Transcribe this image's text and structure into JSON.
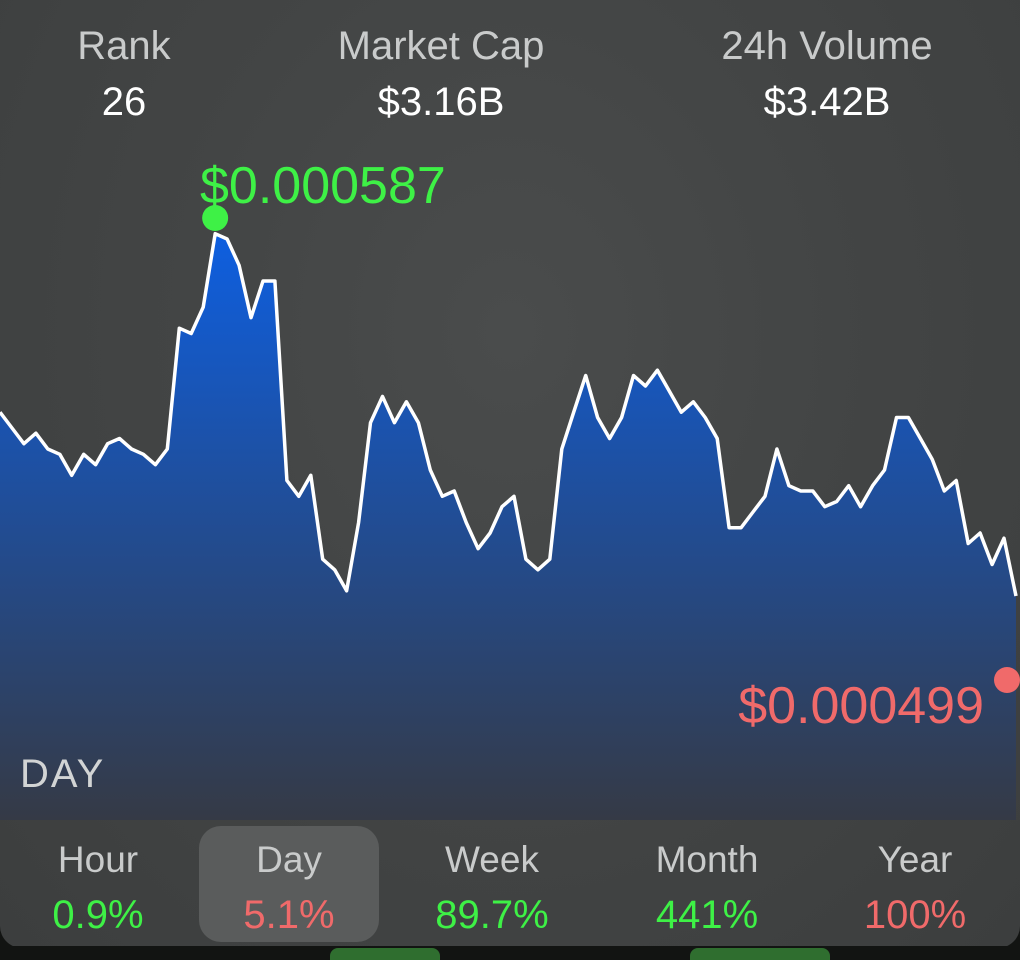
{
  "stats": {
    "rank": {
      "label": "Rank",
      "value": "26"
    },
    "market_cap": {
      "label": "Market Cap",
      "value": "$3.16B"
    },
    "volume": {
      "label": "24h Volume",
      "value": "$3.42B"
    }
  },
  "chart": {
    "high_label": "$0.000587",
    "low_label": "$0.000499",
    "period_label": "DAY",
    "line_color": "#ffffff",
    "fill_top_color": "#0e5fe0",
    "fill_bottom_color": "#353a46",
    "high_color": "#3ef146",
    "low_color": "#f06a6a"
  },
  "tabs": [
    {
      "label": "Hour",
      "value": "0.9%",
      "trend": "up"
    },
    {
      "label": "Day",
      "value": "5.1%",
      "trend": "down",
      "selected": true
    },
    {
      "label": "Week",
      "value": "89.7%",
      "trend": "up"
    },
    {
      "label": "Month",
      "value": "441%",
      "trend": "up"
    },
    {
      "label": "Year",
      "value": "100%",
      "trend": "down"
    }
  ],
  "chart_data": {
    "type": "area",
    "ylim": [
      0.000499,
      0.000587
    ],
    "min": 0.000499,
    "max": 0.000587,
    "values": [
      0.00055,
      0.000547,
      0.000544,
      0.000546,
      0.000543,
      0.000542,
      0.000538,
      0.000542,
      0.00054,
      0.000544,
      0.000545,
      0.000543,
      0.000542,
      0.00054,
      0.000543,
      0.000566,
      0.000565,
      0.00057,
      0.000584,
      0.000583,
      0.000578,
      0.000568,
      0.000575,
      0.000575,
      0.000537,
      0.000534,
      0.000538,
      0.000522,
      0.00052,
      0.000516,
      0.000529,
      0.000548,
      0.000553,
      0.000548,
      0.000552,
      0.000548,
      0.000539,
      0.000534,
      0.000535,
      0.000529,
      0.000524,
      0.000527,
      0.000532,
      0.000534,
      0.000522,
      0.00052,
      0.000522,
      0.000543,
      0.00055,
      0.000557,
      0.000549,
      0.000545,
      0.000549,
      0.000557,
      0.000555,
      0.000558,
      0.000554,
      0.00055,
      0.000552,
      0.000549,
      0.000545,
      0.000528,
      0.000528,
      0.000531,
      0.000534,
      0.000543,
      0.000536,
      0.000535,
      0.000535,
      0.000532,
      0.000533,
      0.000536,
      0.000532,
      0.000536,
      0.000539,
      0.000549,
      0.000549,
      0.000545,
      0.000541,
      0.000535,
      0.000537,
      0.000525,
      0.000527,
      0.000521,
      0.000526,
      0.000515
    ]
  }
}
